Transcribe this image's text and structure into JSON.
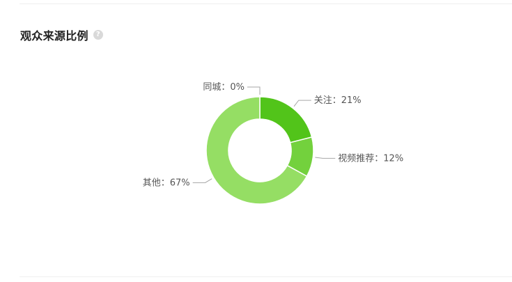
{
  "header": {
    "title": "观众来源比例",
    "help_icon": "question-circle-icon",
    "help_glyph": "?"
  },
  "chart_data": {
    "type": "pie",
    "variant": "donut",
    "title": "观众来源比例",
    "slices": [
      {
        "name": "关注",
        "value": 21,
        "label": "关注：21%",
        "color": "#52c41a"
      },
      {
        "name": "视频推荐",
        "value": 12,
        "label": "视频推荐：12%",
        "color": "#73d13d"
      },
      {
        "name": "其他",
        "value": 67,
        "label": "其他：67%",
        "color": "#95de64"
      },
      {
        "name": "同城",
        "value": 0,
        "label": "同城：0%",
        "color": "#b7eb8f"
      }
    ]
  }
}
